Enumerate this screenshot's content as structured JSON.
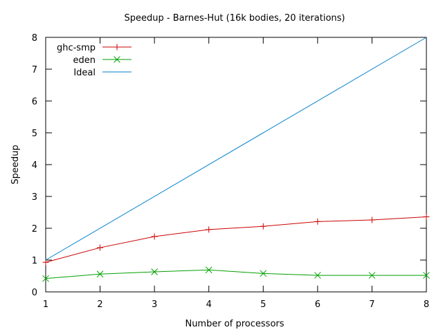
{
  "chart_data": {
    "type": "line",
    "title": "Speedup - Barnes-Hut (16k bodies, 20 iterations)",
    "xlabel": "Number of processors",
    "ylabel": "Speedup",
    "xlim": [
      1,
      8
    ],
    "ylim": [
      0,
      8
    ],
    "x_ticks": [
      "1",
      "2",
      "3",
      "4",
      "5",
      "6",
      "7",
      "8"
    ],
    "y_ticks": [
      "0",
      "1",
      "2",
      "3",
      "4",
      "5",
      "6",
      "7",
      "8"
    ],
    "grid": false,
    "legend_position": "top-left",
    "series": [
      {
        "name": "ghc-smp",
        "color": "#cc0000",
        "marker": "plus",
        "x": [
          1,
          2,
          3,
          4,
          5,
          6,
          7,
          8
        ],
        "y": [
          0.93,
          1.39,
          1.74,
          1.96,
          2.06,
          2.21,
          2.26,
          2.36
        ]
      },
      {
        "name": "eden",
        "color": "#00a000",
        "marker": "cross",
        "x": [
          1,
          2,
          3,
          4,
          5,
          6,
          7,
          8
        ],
        "y": [
          0.42,
          0.56,
          0.63,
          0.69,
          0.58,
          0.52,
          0.52,
          0.52
        ]
      },
      {
        "name": "Ideal",
        "color": "#0080cc",
        "marker": "none",
        "x": [
          1,
          8
        ],
        "y": [
          1,
          8
        ]
      }
    ]
  }
}
